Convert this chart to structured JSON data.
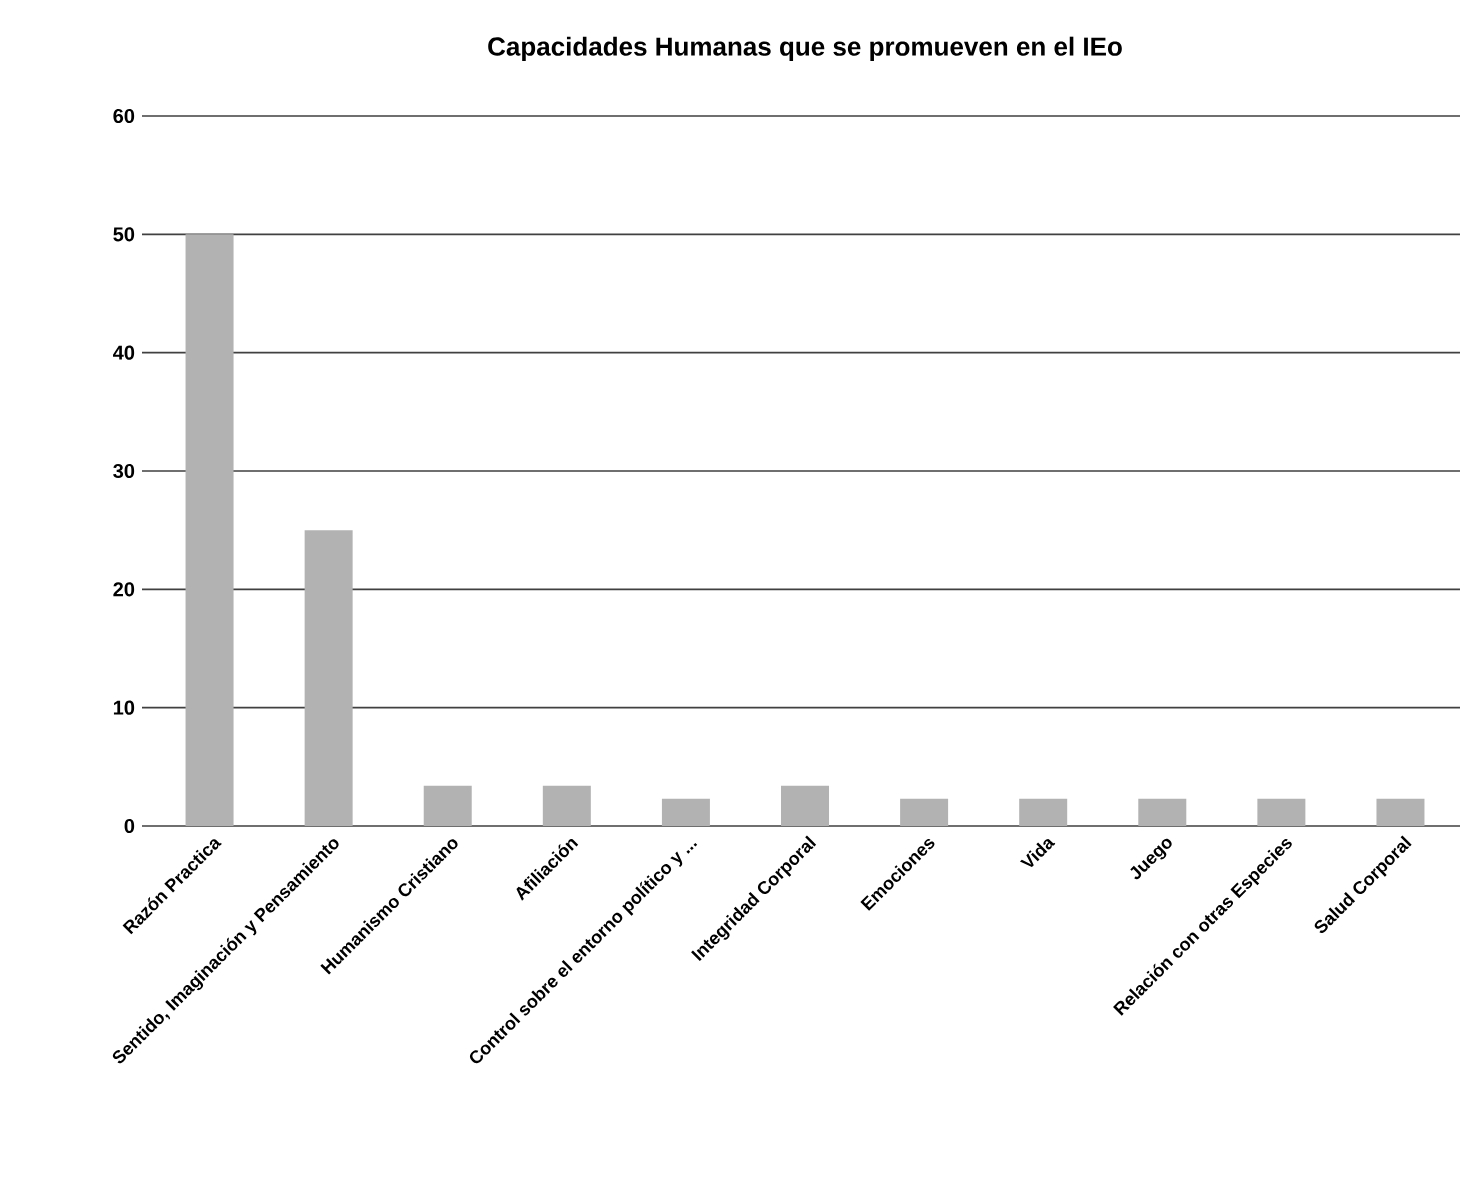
{
  "chart_data": {
    "type": "bar",
    "title": "Capacidades Humanas que se promueven en el IEo",
    "categories": [
      "Razón Practica",
      "Sentido, Imaginación y Pensamiento",
      "Humanismo Cristiano",
      "Afiliación",
      "Control sobre el entorno político y ...",
      "Integridad Corporal",
      "Emociones",
      "Vida",
      "Juego",
      "Relación con otras Especies",
      "Salud Corporal"
    ],
    "values": [
      50,
      25,
      3.4,
      3.4,
      2.3,
      3.4,
      2.3,
      2.3,
      2.3,
      2.3,
      2.3
    ],
    "color": "#b2b2b2",
    "ylim": [
      0,
      60
    ],
    "yticks": [
      0,
      10,
      20,
      30,
      40,
      50,
      60
    ],
    "grid": "y"
  }
}
